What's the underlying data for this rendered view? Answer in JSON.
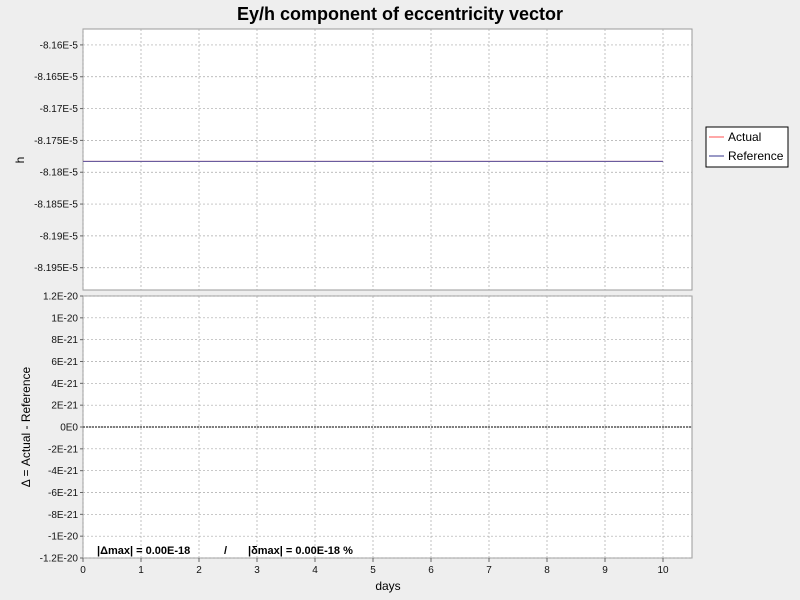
{
  "chart_data": {
    "type": "line",
    "title": "Ey/h component of eccentricity vector",
    "legend": {
      "position": "right",
      "items": [
        {
          "label": "Actual",
          "color": "#ff6f6f"
        },
        {
          "label": "Reference",
          "color": "#5555a0"
        }
      ]
    },
    "x_axis": {
      "label": "days",
      "min": 0,
      "max": 10.5,
      "ticks": [
        0,
        1,
        2,
        3,
        4,
        5,
        6,
        7,
        8,
        9,
        10
      ],
      "tick_labels": [
        "0",
        "1",
        "2",
        "3",
        "4",
        "5",
        "6",
        "7",
        "8",
        "9",
        "10"
      ]
    },
    "panels": [
      {
        "id": "top",
        "ylabel": "h",
        "ylim": [
          -8.1985e-05,
          -8.1575e-05
        ],
        "yticks": [
          -8.16e-05,
          -8.165e-05,
          -8.17e-05,
          -8.175e-05,
          -8.18e-05,
          -8.185e-05,
          -8.19e-05,
          -8.195e-05
        ],
        "ytick_labels": [
          "-8.16E-5",
          "-8.165E-5",
          "-8.17E-5",
          "-8.175E-5",
          "-8.18E-5",
          "-8.185E-5",
          "-8.19E-5",
          "-8.195E-5"
        ],
        "series": [
          {
            "name": "Actual",
            "color": "#ff6f6f",
            "x": [
              0,
              10
            ],
            "y": [
              -8.1783e-05,
              -8.1783e-05
            ]
          },
          {
            "name": "Reference",
            "color": "#5555a0",
            "x": [
              0,
              10
            ],
            "y": [
              -8.1783e-05,
              -8.1783e-05
            ]
          }
        ]
      },
      {
        "id": "bottom",
        "ylabel": "Δ = Actual - Reference",
        "ylim": [
          -1.2e-20,
          1.2e-20
        ],
        "yticks": [
          1.2e-20,
          1e-20,
          8e-21,
          6e-21,
          4e-21,
          2e-21,
          0,
          -2e-21,
          -4e-21,
          -6e-21,
          -8e-21,
          -1e-20,
          -1.2e-20
        ],
        "ytick_labels": [
          "1.2E-20",
          "1E-20",
          "8E-21",
          "6E-21",
          "4E-21",
          "2E-21",
          "0E0",
          "-2E-21",
          "-4E-21",
          "-6E-21",
          "-8E-21",
          "-1E-20",
          "-1.2E-20"
        ],
        "series": [
          {
            "name": "Δ",
            "color": "#555555",
            "x": [
              0,
              10.5
            ],
            "y": [
              0,
              0
            ]
          }
        ]
      }
    ],
    "stats": {
      "abs_delta_max": "|Δmax| = 0.00E-18",
      "separator": "/",
      "rel_delta_max": "|δmax| = 0.00E-18 %"
    },
    "grid": true
  }
}
